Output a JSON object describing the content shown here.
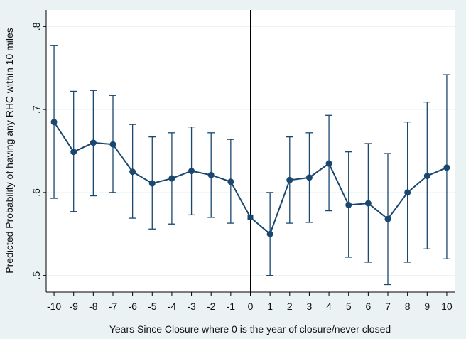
{
  "chart_data": {
    "type": "line",
    "xlabel": "Years Since Closure where 0 is the year of closure/never closed",
    "ylabel": "Predicted Probability of having any RHC within 10 miles",
    "x": [
      -10,
      -9,
      -8,
      -7,
      -6,
      -5,
      -4,
      -3,
      -2,
      -1,
      0,
      1,
      2,
      3,
      4,
      5,
      6,
      7,
      8,
      9,
      10
    ],
    "y": [
      0.685,
      0.649,
      0.66,
      0.658,
      0.625,
      0.611,
      0.617,
      0.626,
      0.621,
      0.613,
      0.57,
      0.55,
      0.615,
      0.618,
      0.635,
      0.585,
      0.587,
      0.568,
      0.6,
      0.62,
      0.63
    ],
    "ci_low": [
      0.593,
      0.577,
      0.596,
      0.6,
      0.569,
      0.556,
      0.562,
      0.573,
      0.57,
      0.563,
      null,
      0.5,
      0.563,
      0.564,
      0.578,
      0.522,
      0.516,
      0.489,
      0.516,
      0.532,
      0.52
    ],
    "ci_high": [
      0.777,
      0.722,
      0.723,
      0.717,
      0.682,
      0.667,
      0.672,
      0.679,
      0.672,
      0.664,
      null,
      0.6,
      0.667,
      0.672,
      0.693,
      0.649,
      0.659,
      0.647,
      0.685,
      0.709,
      0.742
    ],
    "xticks": [
      "-10",
      "-9",
      "-8",
      "-7",
      "-6",
      "-5",
      "-4",
      "-3",
      "-2",
      "-1",
      "0",
      "1",
      "2",
      "3",
      "4",
      "5",
      "6",
      "7",
      "8",
      "9",
      "10"
    ],
    "yticks": [
      ".5",
      ".6",
      ".7",
      ".8"
    ],
    "ytick_values": [
      0.5,
      0.6,
      0.7,
      0.8
    ],
    "xlim": [
      -10.4,
      10.4
    ],
    "ylim": [
      0.48,
      0.82
    ],
    "reference_line_x": 0,
    "grid": "horizontal",
    "colors": {
      "background": "#eaf2f3",
      "plot_background": "#ffffff",
      "series": "#1a476f",
      "grid": "#eaf2f3",
      "axis": "#000000"
    }
  }
}
